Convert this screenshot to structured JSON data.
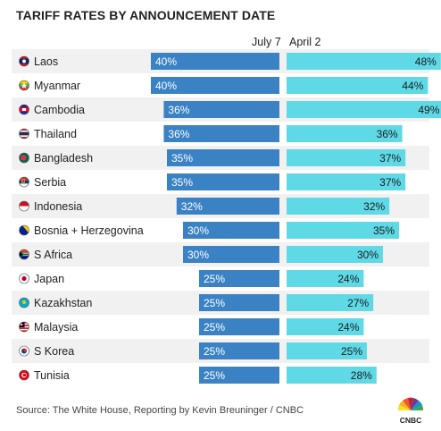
{
  "title": "TARIFF RATES BY ANNOUNCEMENT DATE",
  "source": "Source: The White House, Reporting by Kevin Breuninger / CNBC",
  "logo_text": "CNBC",
  "colors": {
    "july7_bar": "#3b82c4",
    "april2_bar": "#5fd9e6",
    "row_stripe": "#f1f1f1",
    "text": "#222222"
  },
  "chart_data": {
    "type": "bar",
    "categories": [
      "Laos",
      "Myanmar",
      "Cambodia",
      "Thailand",
      "Bangladesh",
      "Serbia",
      "Indonesia",
      "Bosnia + Herzegovina",
      "S Africa",
      "Japan",
      "Kazakhstan",
      "Malaysia",
      "S Korea",
      "Tunisia"
    ],
    "flags": [
      "laos-flag",
      "myanmar-flag",
      "cambodia-flag",
      "thailand-flag",
      "bangladesh-flag",
      "serbia-flag",
      "indonesia-flag",
      "bosnia-flag",
      "south-africa-flag",
      "japan-flag",
      "kazakhstan-flag",
      "malaysia-flag",
      "south-korea-flag",
      "tunisia-flag"
    ],
    "series": [
      {
        "name": "July 7",
        "values": [
          40,
          40,
          36,
          36,
          35,
          35,
          32,
          30,
          30,
          25,
          25,
          25,
          25,
          25
        ],
        "labels": [
          "40%",
          "40%",
          "36%",
          "36%",
          "35%",
          "35%",
          "32%",
          "30%",
          "30%",
          "25%",
          "25%",
          "25%",
          "25%",
          "25%"
        ]
      },
      {
        "name": "April 2",
        "values": [
          48,
          44,
          49,
          36,
          37,
          37,
          32,
          35,
          30,
          24,
          27,
          24,
          25,
          28
        ],
        "labels": [
          "48%",
          "44%",
          "49%",
          "36%",
          "37%",
          "37%",
          "32%",
          "35%",
          "30%",
          "24%",
          "27%",
          "24%",
          "25%",
          "28%"
        ]
      }
    ],
    "xlim": [
      0,
      50
    ],
    "grid": false,
    "legend": "top"
  }
}
